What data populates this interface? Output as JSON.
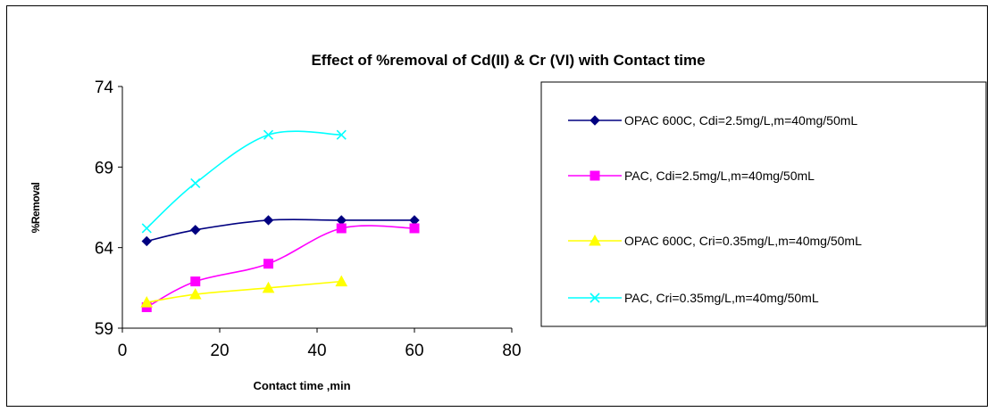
{
  "chart_data": {
    "type": "line",
    "title": "Effect of %removal of Cd(II) & Cr (VI) with Contact time",
    "xlabel": "Contact time ,min",
    "ylabel": "%Removal",
    "xlim": [
      0,
      80
    ],
    "ylim": [
      59,
      74
    ],
    "xticks": [
      0,
      20,
      40,
      60,
      80
    ],
    "yticks": [
      59,
      64,
      69,
      74
    ],
    "grid": false,
    "legend_position": "right",
    "series": [
      {
        "name": "OPAC 600C, Cdi=2.5mg/L,m=40mg/50mL",
        "color": "#000080",
        "marker": "diamond",
        "x": [
          5,
          15,
          30,
          45,
          60
        ],
        "y": [
          64.4,
          65.1,
          65.7,
          65.7,
          65.7
        ]
      },
      {
        "name": "PAC, Cdi=2.5mg/L,m=40mg/50mL",
        "color": "#ff00ff",
        "marker": "square",
        "x": [
          5,
          15,
          30,
          45,
          60
        ],
        "y": [
          60.3,
          61.9,
          63.0,
          65.2,
          65.2
        ]
      },
      {
        "name": "OPAC 600C, Cri=0.35mg/L,m=40mg/50mL",
        "color": "#ffff00",
        "marker": "triangle",
        "x": [
          5,
          15,
          30,
          45
        ],
        "y": [
          60.6,
          61.1,
          61.5,
          61.9
        ]
      },
      {
        "name": "PAC, Cri=0.35mg/L,m=40mg/50mL",
        "color": "#00ffff",
        "marker": "x",
        "x": [
          5,
          15,
          30,
          45
        ],
        "y": [
          65.2,
          68.0,
          71.0,
          71.0
        ]
      }
    ]
  }
}
